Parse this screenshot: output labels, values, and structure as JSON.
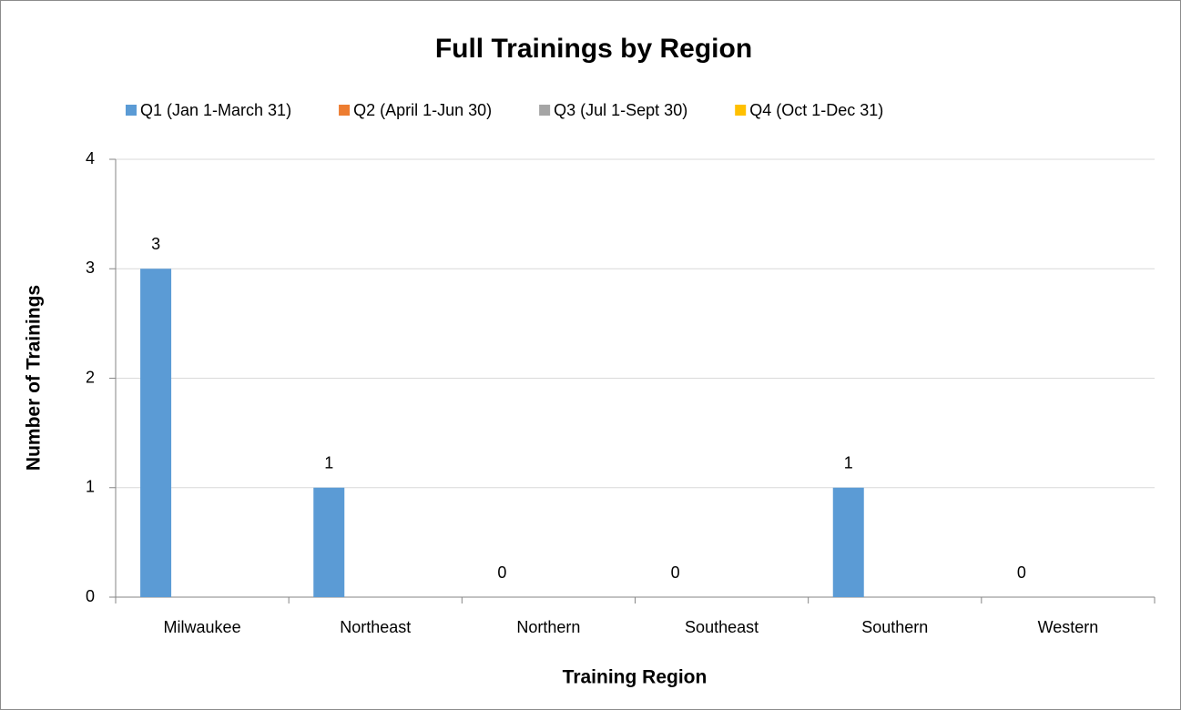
{
  "chart_data": {
    "type": "bar",
    "title": "Full Trainings by Region",
    "x_label": "Training Region",
    "y_label": "Number of Trainings",
    "categories": [
      "Milwaukee",
      "Northeast",
      "Northern",
      "Southeast",
      "Southern",
      "Western"
    ],
    "series": [
      {
        "name": "Q1 (Jan 1-March 31)",
        "color": "#5b9bd5",
        "values": [
          3,
          1,
          0,
          0,
          1,
          0
        ]
      },
      {
        "name": "Q2 (April 1-Jun 30)",
        "color": "#ed7d31",
        "values": [
          null,
          null,
          null,
          null,
          null,
          null
        ]
      },
      {
        "name": "Q3 (Jul 1-Sept 30)",
        "color": "#a5a5a5",
        "values": [
          null,
          null,
          null,
          null,
          null,
          null
        ]
      },
      {
        "name": "Q4 (Oct 1-Dec 31)",
        "color": "#ffc000",
        "values": [
          null,
          null,
          null,
          null,
          null,
          null
        ]
      }
    ],
    "ylim": [
      0,
      4
    ],
    "yticks": [
      0,
      1,
      2,
      3,
      4
    ],
    "grid": true,
    "legend": "top",
    "data_labels": true
  }
}
